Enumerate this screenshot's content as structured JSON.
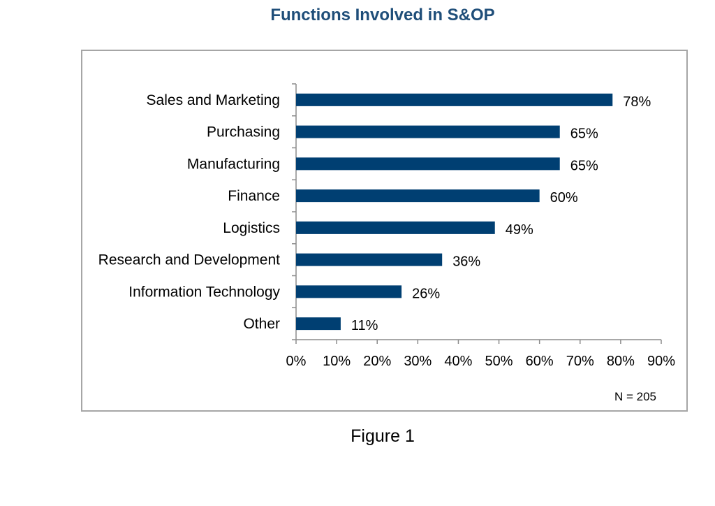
{
  "title": "Functions Involved in S&OP",
  "note": "N = 205",
  "caption": "Figure 1",
  "colors": {
    "bar": "#003f72",
    "title": "#1f4e79",
    "axis": "#8c8c8c"
  },
  "chart_data": {
    "type": "bar",
    "orientation": "horizontal",
    "categories": [
      "Sales and Marketing",
      "Purchasing",
      "Manufacturing",
      "Finance",
      "Logistics",
      "Research and Development",
      "Information Technology",
      "Other"
    ],
    "values": [
      78,
      65,
      65,
      60,
      49,
      36,
      26,
      11
    ],
    "value_labels": [
      "78%",
      "65%",
      "65%",
      "60%",
      "49%",
      "36%",
      "26%",
      "11%"
    ],
    "xlim": [
      0,
      90
    ],
    "xticks": [
      "0%",
      "10%",
      "20%",
      "30%",
      "40%",
      "50%",
      "60%",
      "70%",
      "80%",
      "90%"
    ],
    "grid": false,
    "legend": "none"
  }
}
